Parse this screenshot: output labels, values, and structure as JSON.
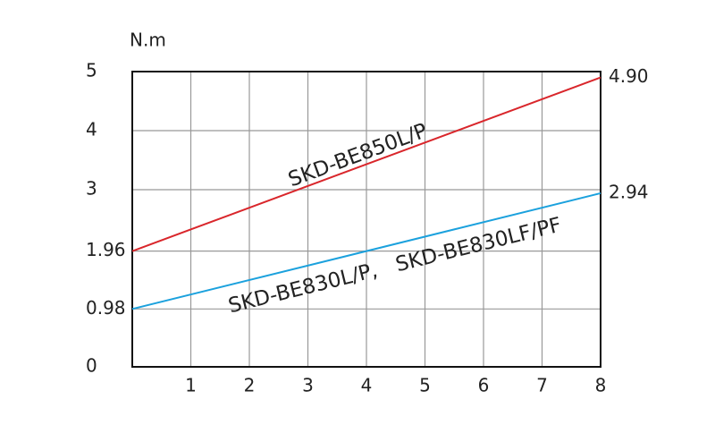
{
  "chart_data": {
    "type": "line",
    "y_label": "N.m",
    "x": [
      0,
      8
    ],
    "series": [
      {
        "name": "SKD-BE850L/P",
        "color": "#d9262b",
        "values": [
          1.96,
          4.9
        ]
      },
      {
        "name": "SKD-BE830L/P,   SKD-BE830LF/PF",
        "color": "#1ba1dd",
        "values": [
          0.98,
          2.94
        ]
      }
    ],
    "xlim": [
      0,
      8
    ],
    "xticks": [
      1,
      2,
      3,
      4,
      5,
      6,
      7,
      8
    ],
    "ylim": [
      0,
      5
    ],
    "yticks": [
      0,
      0.98,
      1.96,
      3,
      4,
      5
    ],
    "y2lim": [
      0,
      5
    ],
    "y2ticks": [
      {
        "value": 4.9,
        "label": "4.90"
      },
      {
        "value": 2.94,
        "label": "2.94"
      }
    ],
    "grid": true
  }
}
